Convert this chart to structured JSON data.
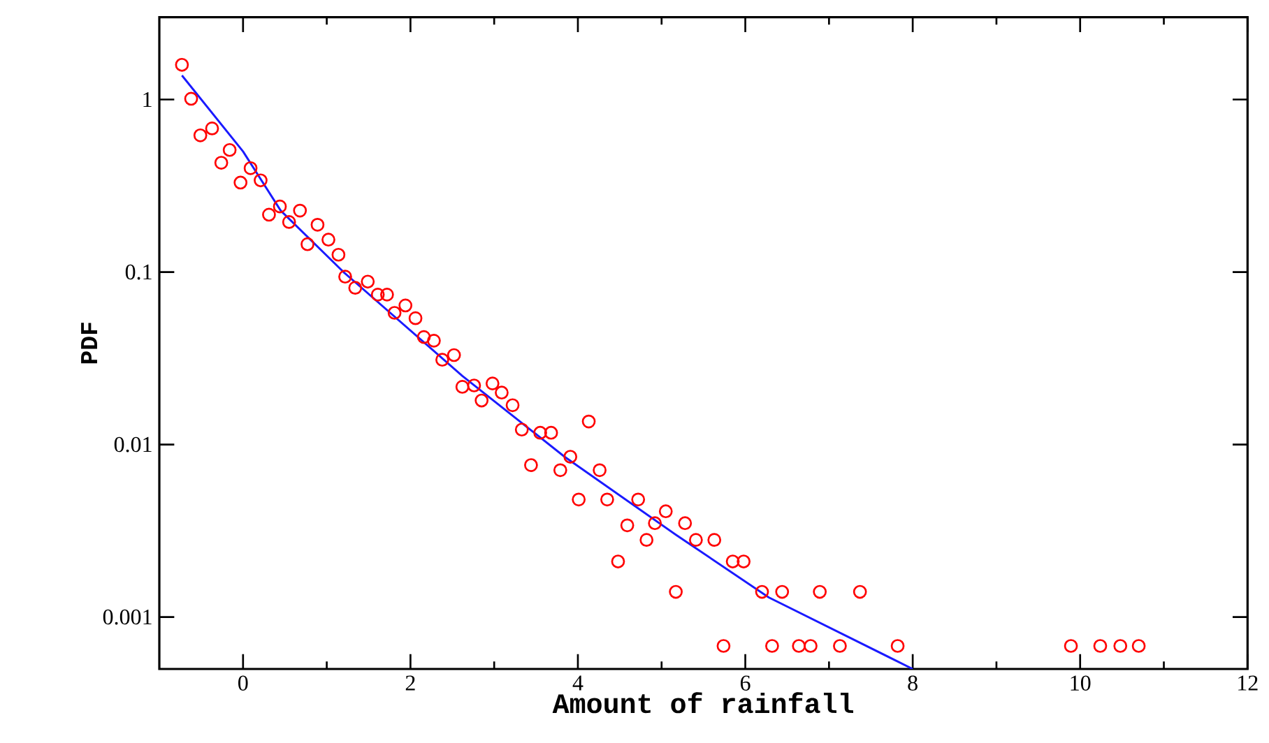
{
  "chart_data": {
    "type": "scatter",
    "xlabel": "Amount of rainfall",
    "ylabel": "PDF",
    "log": "y",
    "xlim": [
      -1,
      12
    ],
    "xticks": [
      0,
      2,
      4,
      6,
      8,
      10,
      12
    ],
    "ylim": [
      0.0005,
      3
    ],
    "yticks": [
      1,
      0.1,
      0.01,
      0.001
    ],
    "series": [
      {
        "marker": "circle",
        "color": "#ff0000",
        "x": [
          -0.73,
          -0.62,
          -0.51,
          -0.37,
          -0.26,
          -0.16,
          -0.03,
          0.09,
          0.21,
          0.31,
          0.44,
          0.55,
          0.68,
          0.77,
          0.89,
          1.02,
          1.14,
          1.22,
          1.34,
          1.49,
          1.61,
          1.72,
          1.81,
          1.94,
          2.06,
          2.16,
          2.28,
          2.38,
          2.52,
          2.62,
          2.76,
          2.85,
          2.98,
          3.09,
          3.22,
          3.33,
          3.44,
          3.55,
          3.68,
          3.79,
          3.91,
          4.01,
          4.13,
          4.26,
          4.35,
          4.48,
          4.59,
          4.72,
          4.82,
          4.92,
          5.05,
          5.17,
          5.28,
          5.41,
          5.63,
          5.74,
          5.85,
          5.98,
          6.2,
          6.32,
          6.44,
          6.64,
          6.78,
          6.89,
          7.13,
          7.37,
          7.82,
          9.89,
          10.24,
          10.48,
          10.7
        ],
        "values": [
          1.59,
          1.01,
          0.62,
          0.68,
          0.43,
          0.51,
          0.33,
          0.4,
          0.34,
          0.215,
          0.24,
          0.195,
          0.227,
          0.145,
          0.188,
          0.154,
          0.126,
          0.094,
          0.081,
          0.088,
          0.074,
          0.074,
          0.058,
          0.064,
          0.054,
          0.042,
          0.04,
          0.031,
          0.033,
          0.0216,
          0.022,
          0.018,
          0.0226,
          0.02,
          0.0169,
          0.0122,
          0.0076,
          0.0117,
          0.0117,
          0.0071,
          0.0085,
          0.0048,
          0.0136,
          0.0071,
          0.0048,
          0.0021,
          0.0034,
          0.0048,
          0.0028,
          0.0035,
          0.0041,
          0.0014,
          0.0035,
          0.0028,
          0.0028,
          0.00068,
          0.0021,
          0.0021,
          0.0014,
          0.00068,
          0.0014,
          0.00068,
          0.00068,
          0.0014,
          0.00068,
          0.0014,
          0.00068,
          0.00068,
          0.00068,
          0.00068,
          0.00068
        ]
      },
      {
        "type": "line",
        "marker": "none",
        "color": "#1a1aff",
        "x": [
          -0.73,
          0,
          0.45,
          1.2,
          2.62,
          3.84,
          5.17,
          6.28,
          8
        ],
        "values": [
          1.38,
          0.5,
          0.227,
          0.1,
          0.025,
          0.0085,
          0.003,
          0.0013,
          0.0005
        ]
      }
    ]
  }
}
